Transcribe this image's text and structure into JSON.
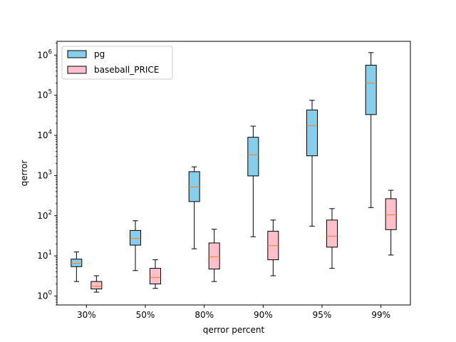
{
  "chart_data": {
    "type": "box",
    "title": "",
    "xlabel": "qerror percent",
    "ylabel": "qerror",
    "yscale": "log",
    "ylim": [
      0.6,
      2200000
    ],
    "categories": [
      "30%",
      "50%",
      "80%",
      "90%",
      "95%",
      "99%"
    ],
    "legend_position": "upper-left",
    "ytick_labels": [
      {
        "base": "10",
        "exp": "0"
      },
      {
        "base": "10",
        "exp": "1"
      },
      {
        "base": "10",
        "exp": "2"
      },
      {
        "base": "10",
        "exp": "3"
      },
      {
        "base": "10",
        "exp": "4"
      },
      {
        "base": "10",
        "exp": "5"
      },
      {
        "base": "10",
        "exp": "6"
      }
    ],
    "series": [
      {
        "name": "pg",
        "color": "#87ceeb",
        "median_color": "#ff7f0e",
        "boxes": [
          {
            "whisker_low": 2.3,
            "q1": 5.4,
            "median": 6.5,
            "q3": 8.3,
            "whisker_high": 12.5
          },
          {
            "whisker_low": 4.3,
            "q1": 18.5,
            "median": 27,
            "q3": 43,
            "whisker_high": 75
          },
          {
            "whisker_low": 15,
            "q1": 225,
            "median": 520,
            "q3": 1250,
            "whisker_high": 1650
          },
          {
            "whisker_low": 30,
            "q1": 980,
            "median": 3300,
            "q3": 9000,
            "whisker_high": 17000
          },
          {
            "whisker_low": 55,
            "q1": 3100,
            "median": 17500,
            "q3": 43000,
            "whisker_high": 75000
          },
          {
            "whisker_low": 160,
            "q1": 33000,
            "median": 200000,
            "q3": 560000,
            "whisker_high": 1150000
          }
        ]
      },
      {
        "name": "baseball_PRICE",
        "color": "#ffc0cb",
        "median_color": "#ff7f0e",
        "boxes": [
          {
            "whisker_low": 1.25,
            "q1": 1.5,
            "median": 1.75,
            "q3": 2.3,
            "whisker_high": 3.2
          },
          {
            "whisker_low": 1.55,
            "q1": 2.0,
            "median": 2.9,
            "q3": 4.9,
            "whisker_high": 8.0
          },
          {
            "whisker_low": 2.3,
            "q1": 4.7,
            "median": 9.5,
            "q3": 21,
            "whisker_high": 46
          },
          {
            "whisker_low": 3.2,
            "q1": 8.0,
            "median": 18,
            "q3": 41,
            "whisker_high": 78
          },
          {
            "whisker_low": 4.9,
            "q1": 16.5,
            "median": 31,
            "q3": 78,
            "whisker_high": 150
          },
          {
            "whisker_low": 10.5,
            "q1": 45,
            "median": 105,
            "q3": 265,
            "whisker_high": 430
          }
        ]
      }
    ]
  }
}
